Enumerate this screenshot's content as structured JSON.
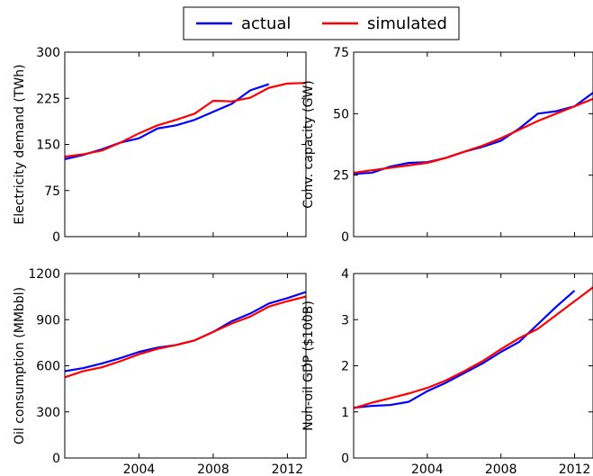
{
  "legend": {
    "placement": "top-center",
    "entries": [
      {
        "label": "actual",
        "color": "#0000ff"
      },
      {
        "label": "simulated",
        "color": "#ff0000"
      }
    ]
  },
  "chart_data": [
    {
      "type": "line",
      "ylabel": "Electricity demand (TWh)",
      "xlim": [
        2000,
        2013
      ],
      "ylim": [
        0,
        300
      ],
      "yticks": [
        0,
        75,
        150,
        225,
        300
      ],
      "yticklabels": [
        "0",
        "75",
        "150",
        "225",
        "300"
      ],
      "xticks": [
        2004,
        2008,
        2012
      ],
      "xticklabels": [],
      "grid": false,
      "series": [
        {
          "name": "actual",
          "color": "#0000ff",
          "x": [
            2000,
            2001,
            2002,
            2003,
            2004,
            2005,
            2006,
            2007,
            2008,
            2009,
            2010,
            2011
          ],
          "y": [
            126,
            133,
            142,
            153,
            160,
            176,
            181,
            190,
            203,
            216,
            238,
            248
          ]
        },
        {
          "name": "simulated",
          "color": "#ff0000",
          "x": [
            2000,
            2001,
            2002,
            2003,
            2004,
            2005,
            2006,
            2007,
            2008,
            2009,
            2010,
            2011,
            2012,
            2013
          ],
          "y": [
            130,
            134,
            140,
            153,
            168,
            181,
            190,
            200,
            221,
            220,
            226,
            242,
            249,
            250
          ]
        }
      ]
    },
    {
      "type": "line",
      "ylabel": "Conv. capacity (GW)",
      "xlim": [
        2000,
        2013
      ],
      "ylim": [
        0,
        75
      ],
      "yticks": [
        0,
        25,
        50,
        75
      ],
      "yticklabels": [
        "0",
        "25",
        "50",
        "75"
      ],
      "xticks": [
        2004,
        2008,
        2012
      ],
      "xticklabels": [],
      "grid": false,
      "series": [
        {
          "name": "actual",
          "color": "#0000ff",
          "x": [
            2000,
            2001,
            2002,
            2003,
            2004,
            2005,
            2006,
            2007,
            2008,
            2009,
            2010,
            2011,
            2012,
            2013
          ],
          "y": [
            25.5,
            26,
            28.5,
            30,
            30.3,
            32,
            34.5,
            36.5,
            39,
            44,
            50,
            51,
            53,
            58.5
          ]
        },
        {
          "name": "simulated",
          "color": "#ff0000",
          "x": [
            2000,
            2001,
            2002,
            2003,
            2004,
            2005,
            2006,
            2007,
            2008,
            2009,
            2010,
            2011,
            2012,
            2013
          ],
          "y": [
            26,
            27,
            28,
            29,
            30,
            32,
            34.5,
            37,
            40,
            43.5,
            47,
            50,
            53,
            56
          ]
        }
      ]
    },
    {
      "type": "line",
      "ylabel": "Oil consumption (MMbbl)",
      "xlim": [
        2000,
        2013
      ],
      "ylim": [
        0,
        1200
      ],
      "yticks": [
        0,
        300,
        600,
        900,
        1200
      ],
      "yticklabels": [
        "0",
        "300",
        "600",
        "900",
        "1200"
      ],
      "xticks": [
        2004,
        2008,
        2012
      ],
      "xticklabels": [
        "2004",
        "2008",
        "2012"
      ],
      "grid": false,
      "series": [
        {
          "name": "actual",
          "color": "#0000ff",
          "x": [
            2000,
            2001,
            2002,
            2003,
            2004,
            2005,
            2006,
            2007,
            2008,
            2009,
            2010,
            2011,
            2012,
            2013
          ],
          "y": [
            565,
            585,
            615,
            650,
            690,
            718,
            735,
            765,
            820,
            890,
            940,
            1005,
            1040,
            1080
          ]
        },
        {
          "name": "simulated",
          "color": "#ff0000",
          "x": [
            2000,
            2001,
            2002,
            2003,
            2004,
            2005,
            2006,
            2007,
            2008,
            2009,
            2010,
            2011,
            2012,
            2013
          ],
          "y": [
            525,
            565,
            590,
            630,
            675,
            710,
            735,
            765,
            820,
            875,
            920,
            985,
            1020,
            1050
          ]
        }
      ]
    },
    {
      "type": "line",
      "ylabel": "Non-oil GDP ($100B)",
      "xlim": [
        2000,
        2013
      ],
      "ylim": [
        0,
        4
      ],
      "yticks": [
        0,
        1,
        2,
        3,
        4
      ],
      "yticklabels": [
        "0",
        "1",
        "2",
        "3",
        "4"
      ],
      "xticks": [
        2004,
        2008,
        2012
      ],
      "xticklabels": [
        "2004",
        "2008",
        "2012"
      ],
      "grid": false,
      "series": [
        {
          "name": "actual",
          "color": "#0000ff",
          "x": [
            2000,
            2001,
            2002,
            2003,
            2004,
            2005,
            2006,
            2007,
            2008,
            2009,
            2010,
            2011,
            2012
          ],
          "y": [
            1.09,
            1.13,
            1.15,
            1.22,
            1.45,
            1.63,
            1.84,
            2.05,
            2.3,
            2.52,
            2.9,
            3.28,
            3.63
          ]
        },
        {
          "name": "simulated",
          "color": "#ff0000",
          "x": [
            2000,
            2001,
            2002,
            2003,
            2004,
            2005,
            2006,
            2007,
            2008,
            2009,
            2010,
            2011,
            2012,
            2013
          ],
          "y": [
            1.08,
            1.2,
            1.3,
            1.4,
            1.52,
            1.68,
            1.88,
            2.1,
            2.36,
            2.6,
            2.8,
            3.1,
            3.4,
            3.7
          ]
        }
      ]
    }
  ]
}
